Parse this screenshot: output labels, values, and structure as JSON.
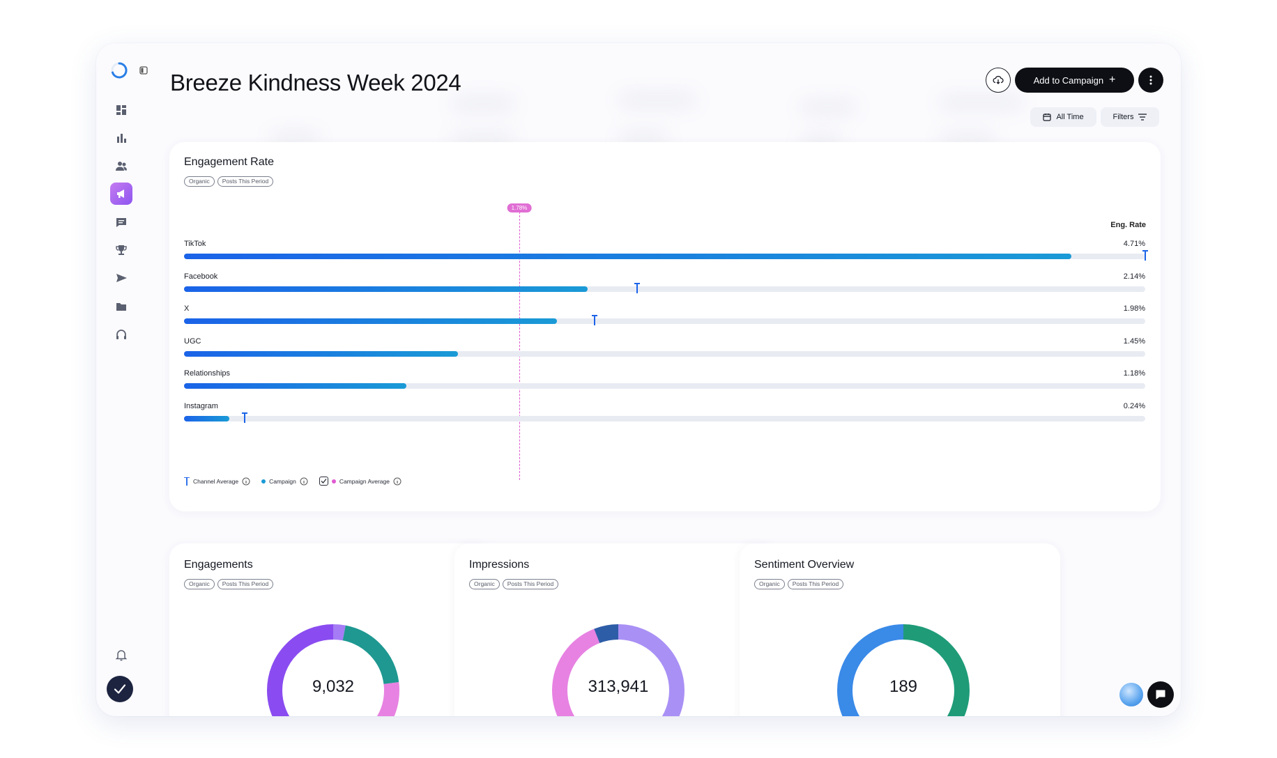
{
  "page": {
    "title": "Breeze Kindness Week 2024"
  },
  "header": {
    "add_button": "Add to Campaign",
    "add_plus": "+",
    "all_time": "All Time",
    "filters": "Filters"
  },
  "colors": {
    "bar_start": "#1b63e8",
    "bar_end": "#1a9ad6",
    "campaign_average": "#e05bd2",
    "nav_active": "#8d55f0",
    "pin": "#1b63e8"
  },
  "engagement": {
    "title": "Engagement Rate",
    "tags": [
      "Organic",
      "Posts This Period"
    ],
    "column_header": "Eng. Rate",
    "campaign_average_label": "1.78%",
    "campaign_average": 1.78,
    "max_scale": 4.71,
    "rows": [
      {
        "label": "TikTok",
        "value": "4.71%",
        "fill_pct": 92.3,
        "pin_pct": 100
      },
      {
        "label": "Facebook",
        "value": "2.14%",
        "fill_pct": 42.0,
        "pin_pct": 47.1
      },
      {
        "label": "X",
        "value": "1.98%",
        "fill_pct": 38.8,
        "pin_pct": 42.7
      },
      {
        "label": "UGC",
        "value": "1.45%",
        "fill_pct": 28.5,
        "pin_pct": null
      },
      {
        "label": "Relationships",
        "value": "1.18%",
        "fill_pct": 23.1,
        "pin_pct": null
      },
      {
        "label": "Instagram",
        "value": "0.24%",
        "fill_pct": 4.7,
        "pin_pct": 6.3
      }
    ],
    "legend": {
      "channel_average": "Channel Average",
      "campaign": "Campaign",
      "campaign_average": "Campaign Average"
    }
  },
  "stats": [
    {
      "title": "Engagements",
      "tags": [
        "Organic",
        "Posts This Period"
      ],
      "value": "9,032",
      "segments": [
        {
          "color": "#a57cf5",
          "fraction": 0.03
        },
        {
          "color": "#1e9891",
          "fraction": 0.2
        },
        {
          "color": "#e782e2",
          "fraction": 0.12
        },
        {
          "color": "#8a4cf0",
          "fraction": 0.65
        }
      ]
    },
    {
      "title": "Impressions",
      "tags": [
        "Organic",
        "Posts This Period"
      ],
      "value": "313,941",
      "segments": [
        {
          "color": "#a990f5",
          "fraction": 0.42
        },
        {
          "color": "#1e9891",
          "fraction": 0.04
        },
        {
          "color": "#e782e2",
          "fraction": 0.48
        },
        {
          "color": "#2e5da8",
          "fraction": 0.06
        }
      ]
    },
    {
      "title": "Sentiment Overview",
      "tags": [
        "Organic",
        "Posts This Period"
      ],
      "value": "189",
      "segments": [
        {
          "color": "#1f9b78",
          "fraction": 0.36
        },
        {
          "color": "#3a8ae8",
          "fraction": 0.64
        }
      ]
    }
  ]
}
